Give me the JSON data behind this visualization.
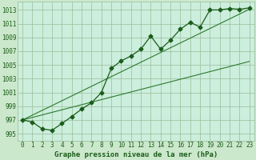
{
  "hours": [
    0,
    1,
    2,
    3,
    4,
    5,
    6,
    7,
    8,
    9,
    10,
    11,
    12,
    13,
    14,
    15,
    16,
    17,
    18,
    19,
    20,
    21,
    22,
    23
  ],
  "pressure": [
    997.0,
    996.7,
    995.7,
    995.5,
    996.5,
    997.5,
    998.6,
    999.5,
    1001.0,
    1004.5,
    1005.6,
    1006.3,
    1007.3,
    1009.2,
    1007.3,
    1008.6,
    1010.2,
    1011.2,
    1010.5,
    1013.0,
    1013.0,
    1013.2,
    1013.1,
    1013.3
  ],
  "trend_low": [
    997.0,
    997.37,
    997.74,
    998.11,
    998.48,
    998.85,
    999.22,
    999.59,
    999.96,
    1000.33,
    1000.7,
    1001.07,
    1001.44,
    1001.81,
    1002.18,
    1002.55,
    1002.92,
    1003.29,
    1003.66,
    1004.03,
    1004.4,
    1004.77,
    1005.14,
    1005.51
  ],
  "trend_high": [
    997.0,
    997.7,
    998.4,
    999.1,
    999.8,
    1000.5,
    1001.2,
    1001.9,
    1002.6,
    1003.3,
    1004.0,
    1004.7,
    1005.4,
    1006.1,
    1006.8,
    1007.5,
    1008.2,
    1008.9,
    1009.6,
    1010.3,
    1011.0,
    1011.7,
    1012.4,
    1013.1
  ],
  "bg_color": "#cce8cc",
  "plot_bg_color": "#cceedd",
  "grid_color": "#99bb99",
  "line_color": "#1a5c1a",
  "trend_color": "#2d7a2d",
  "ylabel_ticks": [
    995,
    997,
    999,
    1001,
    1003,
    1005,
    1007,
    1009,
    1011,
    1013
  ],
  "ylim": [
    994.0,
    1014.2
  ],
  "xlim": [
    -0.5,
    23.5
  ],
  "xlabel": "Graphe pression niveau de la mer (hPa)",
  "marker": "D",
  "markersize": 2.5,
  "tick_fontsize": 5.5,
  "xlabel_fontsize": 6.5
}
